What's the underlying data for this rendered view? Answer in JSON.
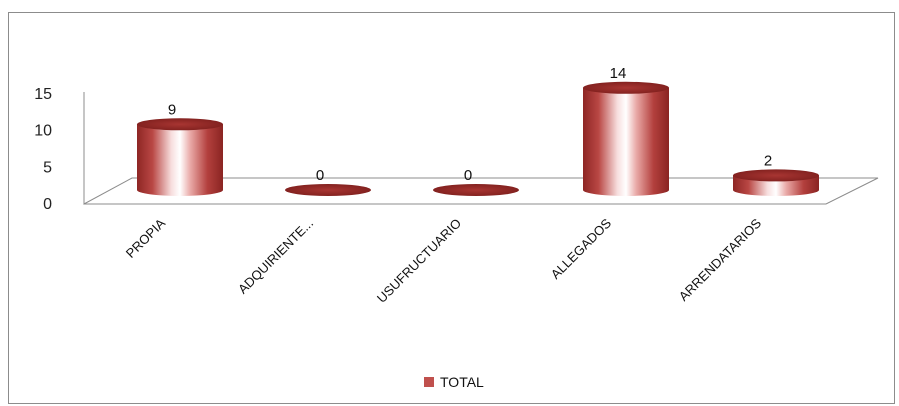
{
  "chart_data": {
    "type": "bar",
    "categories": [
      "PROPIA",
      "ADQUIRIENTE...",
      "USUFRUCTUARIO",
      "ALLEGADOS",
      "ARRENDATARIOS"
    ],
    "series": [
      {
        "name": "TOTAL",
        "values": [
          9,
          0,
          0,
          14,
          2
        ],
        "color": "#c0504d"
      }
    ],
    "data_labels": [
      "9",
      "0",
      "0",
      "14",
      "2"
    ],
    "yticks": [
      "0",
      "5",
      "10",
      "15"
    ],
    "ylim": [
      0,
      15
    ],
    "title": "",
    "xlabel": "",
    "ylabel": "",
    "legend_position": "bottom",
    "grid": false
  }
}
